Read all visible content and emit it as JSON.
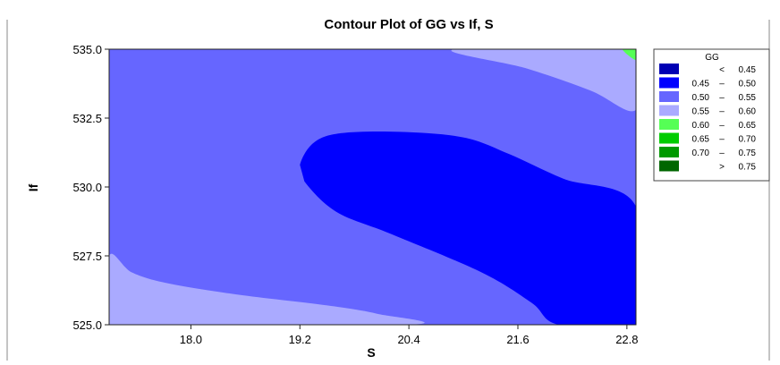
{
  "chart_data": {
    "type": "contour",
    "title": "Contour Plot of GG vs If, S",
    "xlabel": "S",
    "ylabel": "If",
    "xlim": [
      17.1,
      22.9
    ],
    "ylim": [
      525.0,
      535.0
    ],
    "xticks": [
      "18.0",
      "19.2",
      "20.4",
      "21.6",
      "22.8"
    ],
    "xtick_values": [
      18.0,
      19.2,
      20.4,
      21.6,
      22.8
    ],
    "yticks": [
      "525.0",
      "527.5",
      "530.0",
      "532.5",
      "535.0"
    ],
    "ytick_values": [
      525.0,
      527.5,
      530.0,
      532.5,
      535.0
    ],
    "legend": {
      "title": "GG",
      "placement": "right",
      "entries": [
        {
          "color": "#0000b4",
          "lo": "",
          "op": "<",
          "hi": "0.45"
        },
        {
          "color": "#0000ff",
          "lo": "0.45",
          "op": "–",
          "hi": "0.50"
        },
        {
          "color": "#6666ff",
          "lo": "0.50",
          "op": "–",
          "hi": "0.55"
        },
        {
          "color": "#aaaaff",
          "lo": "0.55",
          "op": "–",
          "hi": "0.60"
        },
        {
          "color": "#55ff55",
          "lo": "0.60",
          "op": "–",
          "hi": "0.65"
        },
        {
          "color": "#00cc00",
          "lo": "0.65",
          "op": "–",
          "hi": "0.70"
        },
        {
          "color": "#009900",
          "lo": "0.70",
          "op": "–",
          "hi": "0.75"
        },
        {
          "color": "#006600",
          "lo": "",
          "op": ">",
          "hi": "0.75"
        }
      ]
    },
    "regions": [
      {
        "band": "0.55 – 0.60",
        "color": "#aaaaff",
        "points": [
          [
            20.9,
            535.0
          ],
          [
            21.7,
            534.3
          ],
          [
            22.4,
            533.5
          ],
          [
            22.9,
            532.8
          ],
          [
            22.9,
            535.0
          ]
        ]
      },
      {
        "band": "0.55 – 0.60",
        "color": "#aaaaff",
        "points": [
          [
            17.1,
            527.5
          ],
          [
            17.35,
            526.9
          ],
          [
            17.75,
            526.5
          ],
          [
            18.5,
            526.1
          ],
          [
            19.5,
            525.7
          ],
          [
            20.05,
            525.4
          ],
          [
            20.4,
            525.0
          ],
          [
            17.1,
            525.0
          ]
        ]
      },
      {
        "band": "0.60 – 0.65",
        "color": "#55ff55",
        "points": [
          [
            22.75,
            535.0
          ],
          [
            22.9,
            534.6
          ],
          [
            22.9,
            535.0
          ]
        ]
      },
      {
        "band": "0.45 – 0.50",
        "color": "#0000ff",
        "points": [
          [
            19.2,
            530.8
          ],
          [
            19.35,
            531.6
          ],
          [
            19.65,
            531.95
          ],
          [
            20.3,
            532.0
          ],
          [
            21.0,
            531.8
          ],
          [
            21.5,
            531.2
          ],
          [
            22.1,
            530.3
          ],
          [
            22.9,
            529.3
          ],
          [
            22.9,
            525.0
          ],
          [
            22.05,
            525.0
          ],
          [
            21.75,
            525.8
          ],
          [
            21.2,
            526.9
          ],
          [
            20.2,
            528.3
          ],
          [
            19.6,
            529.1
          ],
          [
            19.25,
            530.2
          ]
        ]
      }
    ]
  }
}
